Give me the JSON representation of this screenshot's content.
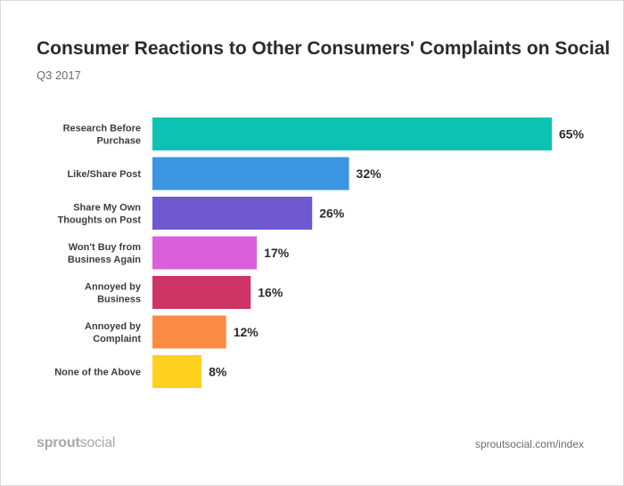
{
  "brand": {
    "name_bold": "sprout",
    "name_light": "social"
  },
  "source": "sproutsocial.com/index",
  "chart_data": {
    "type": "bar",
    "orientation": "horizontal",
    "title": "Consumer Reactions to Other Consumers' Complaints on Social",
    "subtitle": "Q3 2017",
    "categories": [
      [
        "Research Before",
        "Purchase"
      ],
      [
        "Like/Share Post"
      ],
      [
        "Share My Own",
        "Thoughts on Post"
      ],
      [
        "Won't Buy from",
        "Business Again"
      ],
      [
        "Annoyed by",
        "Business"
      ],
      [
        "Annoyed by",
        "Complaint"
      ],
      [
        "None of the Above"
      ]
    ],
    "values": [
      65,
      32,
      26,
      17,
      16,
      12,
      8
    ],
    "value_labels": [
      "65%",
      "32%",
      "26%",
      "17%",
      "16%",
      "12%",
      "8%"
    ],
    "colors": [
      "#0cc3b3",
      "#3a96e3",
      "#7058d1",
      "#da5fdb",
      "#cd3465",
      "#fb8a43",
      "#fed11f"
    ],
    "xlim": [
      0,
      65
    ],
    "grid": false,
    "legend": "none"
  }
}
